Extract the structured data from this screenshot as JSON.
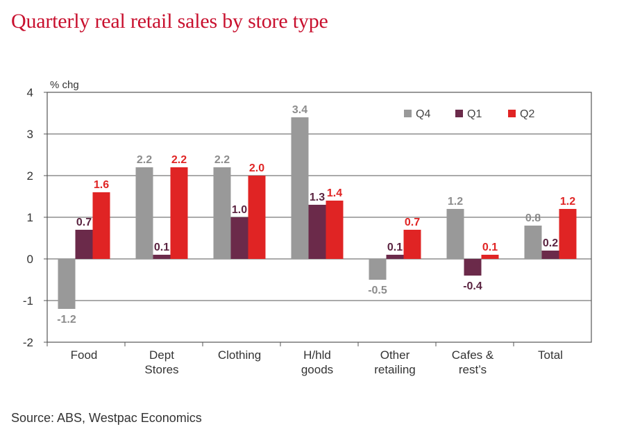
{
  "title": "Quarterly real retail sales by store type",
  "source": "Source: ABS, Westpac Economics",
  "chart_data": {
    "type": "bar",
    "ylabel": "% chg",
    "ylim": [
      -2,
      4
    ],
    "yticks": [
      -2,
      -1,
      0,
      1,
      2,
      3,
      4
    ],
    "grid": true,
    "legend_position": "top-right",
    "categories": [
      [
        "Food"
      ],
      [
        "Dept",
        "Stores"
      ],
      [
        "Clothing"
      ],
      [
        "H/hld",
        "goods"
      ],
      [
        "Other",
        "retailing"
      ],
      [
        "Cafes &",
        "rest’s"
      ],
      [
        "Total"
      ]
    ],
    "series": [
      {
        "name": "Q4",
        "color": "#999999",
        "label_color": "#8c8c8c",
        "values": [
          -1.2,
          2.2,
          2.2,
          3.4,
          -0.5,
          1.2,
          0.8
        ]
      },
      {
        "name": "Q1",
        "color": "#6b2a4a",
        "label_color": "#5a2340",
        "values": [
          0.7,
          0.1,
          1.0,
          1.3,
          0.1,
          -0.4,
          0.2
        ]
      },
      {
        "name": "Q2",
        "color": "#e02424",
        "label_color": "#e02424",
        "values": [
          1.6,
          2.2,
          2.0,
          1.4,
          0.7,
          0.1,
          1.2
        ]
      }
    ]
  }
}
